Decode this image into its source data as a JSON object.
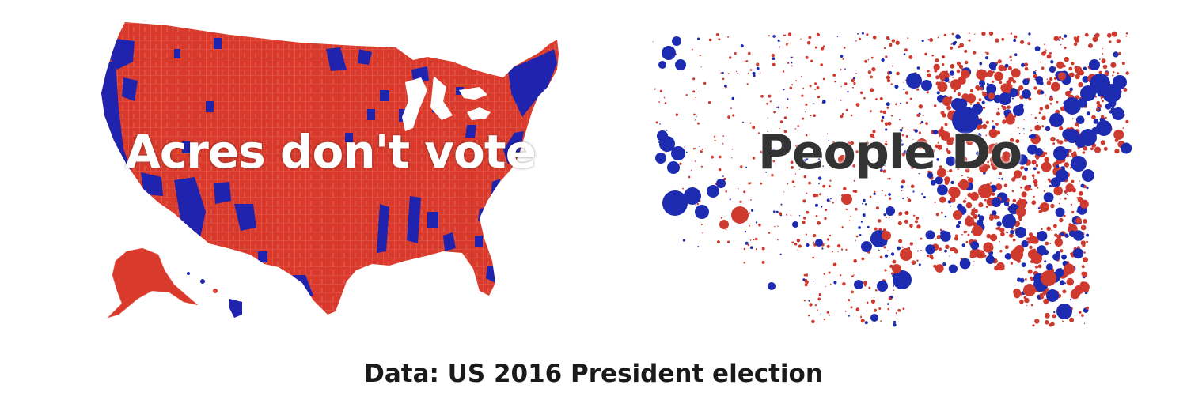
{
  "panels": {
    "left": {
      "overlay_text": "Acres don't vote",
      "fill_colors": {
        "republican": "#d93a2b",
        "democrat": "#1f23ad",
        "border": "#e9786c"
      }
    },
    "right": {
      "overlay_text": "People Do",
      "fill_colors": {
        "republican": "#cf3a2f",
        "democrat": "#1c2bb0"
      }
    }
  },
  "caption": {
    "text": "Data: US 2016 President election"
  }
}
